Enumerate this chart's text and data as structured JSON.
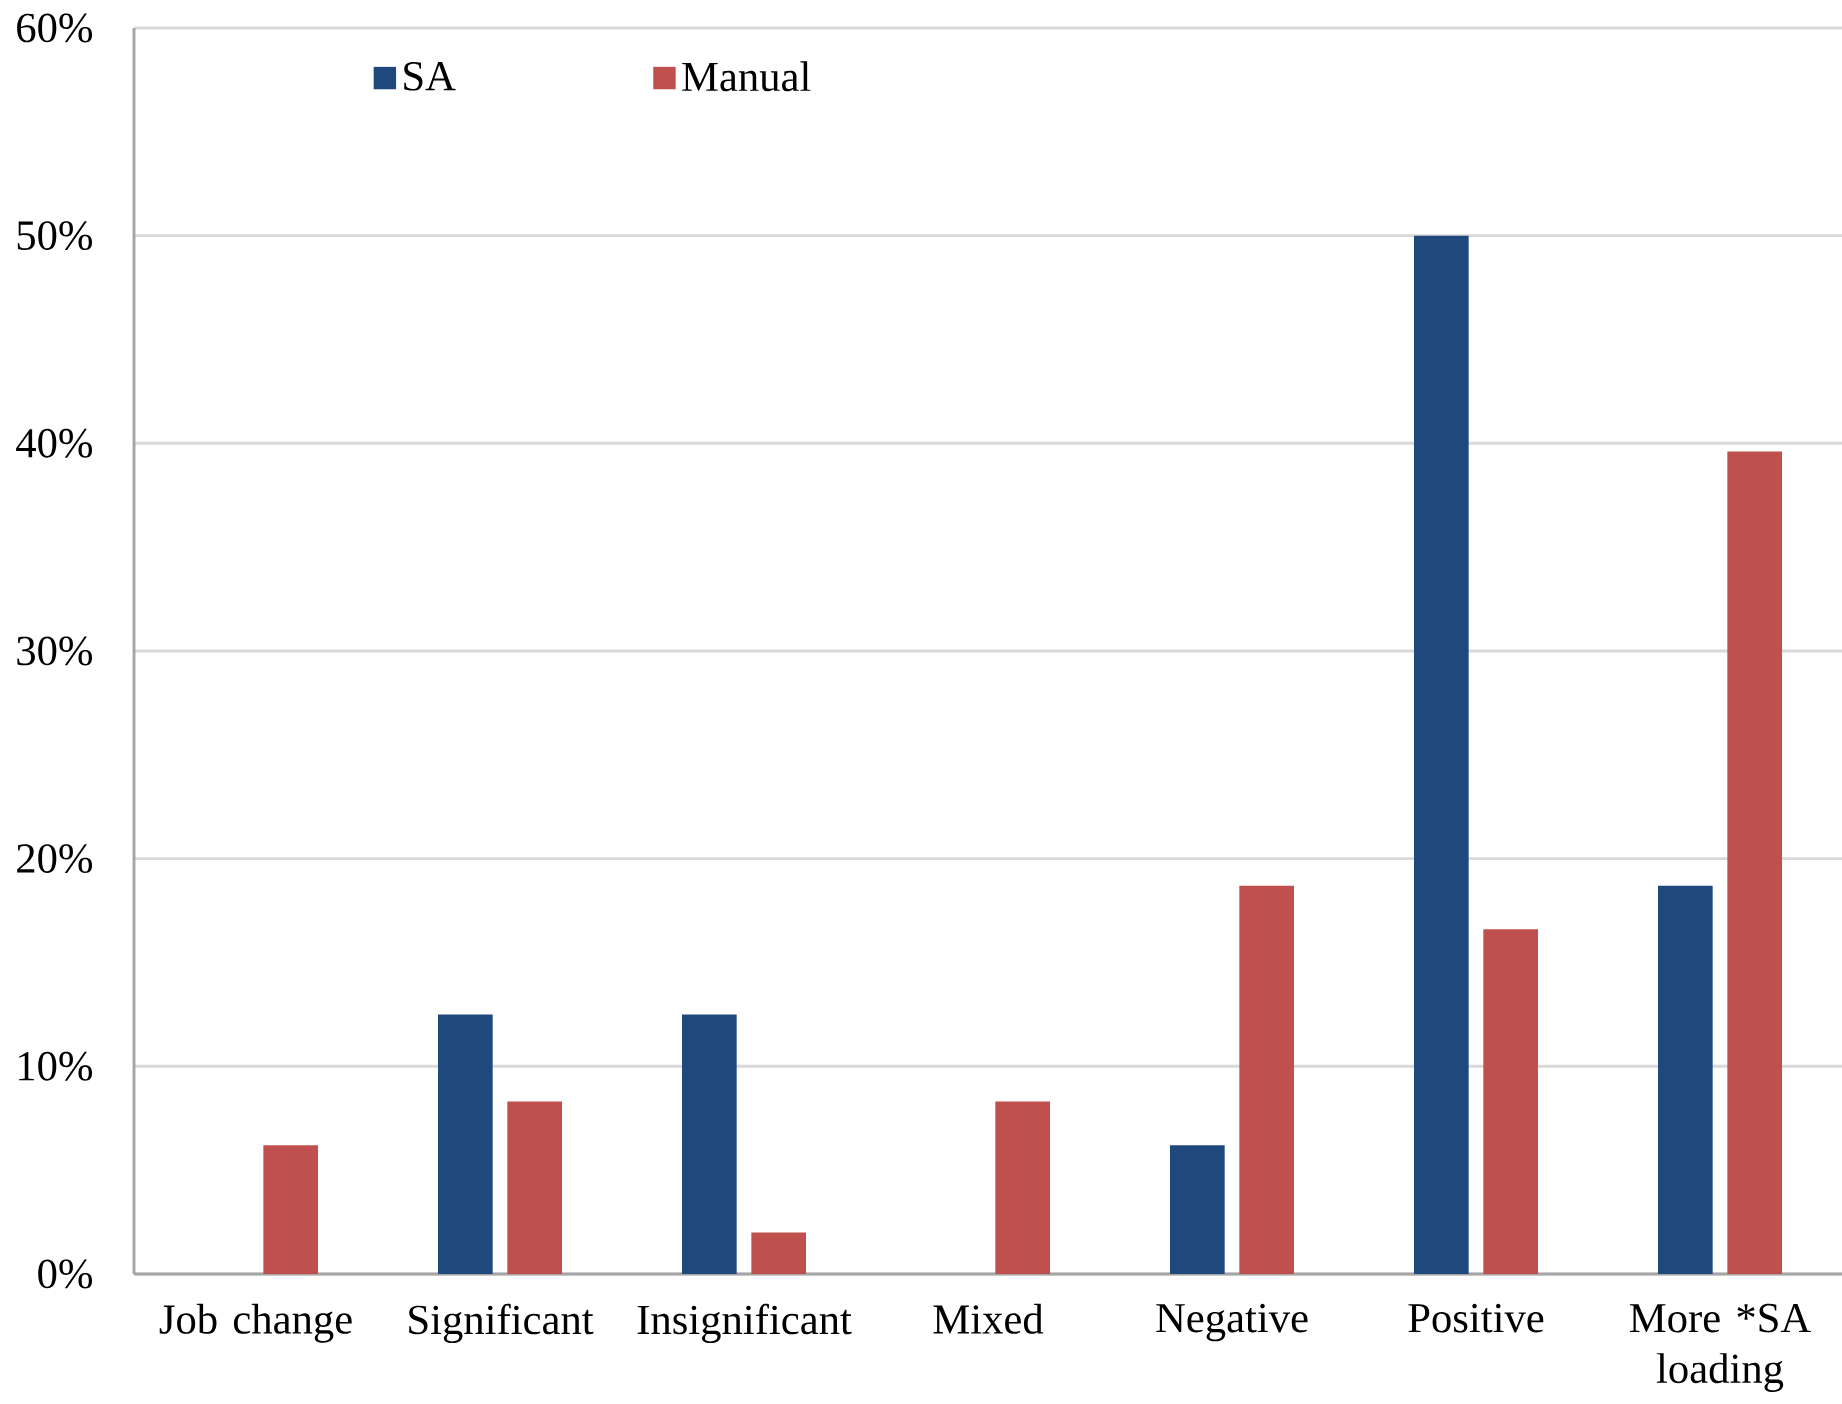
{
  "chart_data": {
    "type": "bar",
    "categories": [
      "Job change",
      "Significant",
      "Insignificant",
      "Mixed",
      "Negative",
      "Positive",
      "More *SA loading"
    ],
    "series": [
      {
        "name": "SA",
        "color": "#1f497d",
        "values": [
          0,
          12.5,
          12.5,
          0,
          6.2,
          50,
          18.7
        ]
      },
      {
        "name": "Manual",
        "color": "#c0504d",
        "values": [
          6.2,
          8.3,
          2.0,
          8.3,
          18.7,
          16.6,
          39.6
        ]
      }
    ],
    "ylim": [
      0,
      60
    ],
    "yticks": [
      {
        "value": 0,
        "label": "0%"
      },
      {
        "value": 10,
        "label": "10%"
      },
      {
        "value": 20,
        "label": "20%"
      },
      {
        "value": 30,
        "label": "30%"
      },
      {
        "value": 40,
        "label": "40%"
      },
      {
        "value": 50,
        "label": "50%"
      },
      {
        "value": 60,
        "label": "60%"
      }
    ],
    "grid": "y",
    "legend": "top left"
  }
}
